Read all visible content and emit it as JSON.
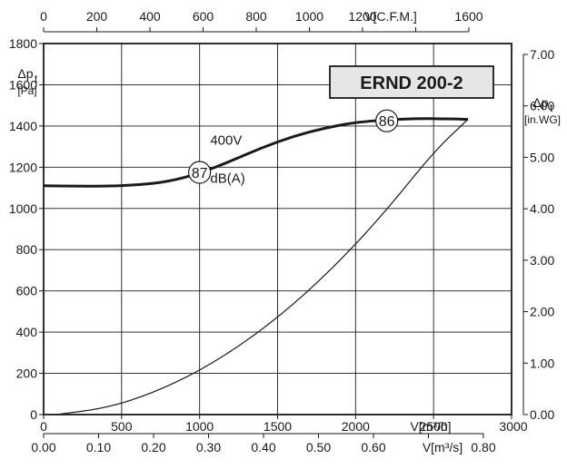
{
  "chart_data": {
    "type": "line",
    "title": "ERND 200-2",
    "x_primary": {
      "label": "V[m³/h]",
      "ticks": [
        0,
        500,
        1000,
        1500,
        2000,
        2500,
        3000
      ],
      "range": [
        0,
        3000
      ]
    },
    "x_top": {
      "label": "V[C.F.M.]",
      "ticks": [
        0,
        200,
        400,
        600,
        800,
        1000,
        1200,
        1600
      ],
      "range": [
        0,
        1766
      ]
    },
    "x_bottom": {
      "label": "V[m³/s]",
      "ticks": [
        "0.00",
        "0.10",
        "0.20",
        "0.30",
        "0.40",
        "0.50",
        "0.60",
        "0.80"
      ],
      "range": [
        0,
        0.8333
      ]
    },
    "y_left": {
      "label_main": "Δp",
      "label_sub": "t",
      "unit": "[Pa]",
      "ticks": [
        0,
        200,
        400,
        600,
        800,
        1000,
        1200,
        1400,
        1600,
        1800
      ],
      "range": [
        0,
        1800
      ]
    },
    "y_right": {
      "label_main": "Δp",
      "label_sub": "t",
      "unit": "[in.WG]",
      "ticks": [
        "0.00",
        "1.00",
        "2.00",
        "3.00",
        "4.00",
        "5.00",
        "6.00",
        "7.00"
      ],
      "range": [
        0,
        7.2
      ]
    },
    "series": [
      {
        "name": "400V",
        "x": [
          0,
          200,
          400,
          600,
          800,
          1000,
          1200,
          1400,
          1600,
          1800,
          2000,
          2200,
          2400,
          2600,
          2720
        ],
        "y": [
          1110,
          1108,
          1108,
          1113,
          1130,
          1170,
          1230,
          1295,
          1350,
          1390,
          1418,
          1430,
          1436,
          1435,
          1432
        ]
      },
      {
        "name": "",
        "x": [
          100,
          400,
          700,
          1000,
          1300,
          1600,
          1900,
          2200,
          2500,
          2720
        ],
        "y": [
          2,
          31,
          104,
          212,
          355,
          532,
          745,
          992,
          1274,
          1432
        ]
      }
    ],
    "annotations": [
      {
        "text": "87",
        "x": 1000,
        "y": 1175,
        "circled": true
      },
      {
        "text": "dB(A)",
        "x": 1180,
        "y": 1125
      },
      {
        "text": "86",
        "x": 2200,
        "y": 1425,
        "circled": true
      },
      {
        "text": "400V",
        "x": 1170,
        "y": 1310
      }
    ],
    "grid": true
  }
}
